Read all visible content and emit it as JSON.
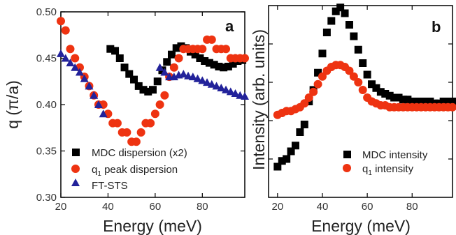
{
  "chart_data": [
    {
      "panel_label": "a",
      "type": "scatter",
      "xlabel": "Energy (meV)",
      "ylabel": "q (π/a)",
      "xlim": [
        20,
        98
      ],
      "ylim": [
        0.3,
        0.5
      ],
      "xticks": [
        "20",
        "40",
        "60",
        "80"
      ],
      "yticks": [
        "0.30",
        "0.35",
        "0.40",
        "0.45",
        "0.50"
      ],
      "legend_position": "bottom-right",
      "series": [
        {
          "name": "MDC dispersion (x2)",
          "marker": "square",
          "color": "#000000",
          "points": [
            [
              41,
              0.46
            ],
            [
              43,
              0.458
            ],
            [
              45,
              0.45
            ],
            [
              47,
              0.44
            ],
            [
              49,
              0.433
            ],
            [
              51,
              0.427
            ],
            [
              53,
              0.42
            ],
            [
              55,
              0.416
            ],
            [
              57,
              0.414
            ],
            [
              59,
              0.416
            ],
            [
              61,
              0.425
            ],
            [
              63,
              0.437
            ],
            [
              65,
              0.446
            ],
            [
              67,
              0.454
            ],
            [
              69,
              0.461
            ],
            [
              71,
              0.463
            ],
            [
              73,
              0.461
            ],
            [
              75,
              0.457
            ],
            [
              77,
              0.454
            ],
            [
              79,
              0.45
            ],
            [
              81,
              0.447
            ],
            [
              83,
              0.445
            ],
            [
              85,
              0.443
            ],
            [
              87,
              0.441
            ],
            [
              89,
              0.44
            ],
            [
              91,
              0.441
            ],
            [
              93,
              0.444
            ],
            [
              95,
              0.447
            ],
            [
              97,
              0.448
            ]
          ]
        },
        {
          "name": "q1 peak dispersion",
          "name_main": "q",
          "name_sub": "1",
          "name_rest": " peak dispersion",
          "marker": "circle",
          "color": "#ee3311",
          "points": [
            [
              20,
              0.49
            ],
            [
              22,
              0.48
            ],
            [
              24,
              0.46
            ],
            [
              26,
              0.45
            ],
            [
              28,
              0.44
            ],
            [
              30,
              0.43
            ],
            [
              32,
              0.42
            ],
            [
              34,
              0.41
            ],
            [
              36,
              0.4
            ],
            [
              38,
              0.4
            ],
            [
              40,
              0.39
            ],
            [
              42,
              0.38
            ],
            [
              44,
              0.38
            ],
            [
              46,
              0.37
            ],
            [
              48,
              0.37
            ],
            [
              50,
              0.36
            ],
            [
              52,
              0.36
            ],
            [
              54,
              0.37
            ],
            [
              56,
              0.38
            ],
            [
              58,
              0.38
            ],
            [
              60,
              0.39
            ],
            [
              62,
              0.4
            ],
            [
              64,
              0.41
            ],
            [
              66,
              0.43
            ],
            [
              68,
              0.44
            ],
            [
              70,
              0.45
            ],
            [
              72,
              0.46
            ],
            [
              74,
              0.46
            ],
            [
              76,
              0.46
            ],
            [
              78,
              0.46
            ],
            [
              80,
              0.46
            ],
            [
              82,
              0.47
            ],
            [
              84,
              0.47
            ],
            [
              86,
              0.46
            ],
            [
              88,
              0.46
            ],
            [
              90,
              0.46
            ],
            [
              92,
              0.45
            ],
            [
              94,
              0.45
            ],
            [
              96,
              0.45
            ],
            [
              98,
              0.45
            ]
          ]
        },
        {
          "name": "FT-STS",
          "marker": "triangle",
          "color": "#22229a",
          "points": [
            [
              20,
              0.455
            ],
            [
              22,
              0.45
            ],
            [
              24,
              0.445
            ],
            [
              26,
              0.44
            ],
            [
              28,
              0.435
            ],
            [
              30,
              0.428
            ],
            [
              32,
              0.42
            ],
            [
              34,
              0.41
            ],
            [
              36,
              0.4
            ],
            [
              38,
              0.39
            ],
            [
              62,
              0.44
            ],
            [
              64,
              0.435
            ],
            [
              66,
              0.43
            ],
            [
              68,
              0.43
            ],
            [
              70,
              0.432
            ],
            [
              72,
              0.433
            ],
            [
              74,
              0.431
            ],
            [
              76,
              0.43
            ],
            [
              78,
              0.428
            ],
            [
              80,
              0.426
            ],
            [
              82,
              0.424
            ],
            [
              84,
              0.422
            ],
            [
              86,
              0.42
            ],
            [
              88,
              0.418
            ],
            [
              90,
              0.416
            ],
            [
              92,
              0.414
            ],
            [
              94,
              0.412
            ],
            [
              96,
              0.41
            ],
            [
              98,
              0.409
            ]
          ]
        }
      ]
    },
    {
      "panel_label": "b",
      "type": "scatter",
      "xlabel": "Energy (meV)",
      "ylabel": "Intensity (arb. units)",
      "xlim": [
        16,
        98
      ],
      "ylim": [
        0,
        1
      ],
      "xticks": [
        "20",
        "40",
        "60",
        "80"
      ],
      "legend_position": "bottom-right",
      "series": [
        {
          "name": "MDC intensity",
          "marker": "square",
          "color": "#000000",
          "points": [
            [
              20,
              0.16
            ],
            [
              22,
              0.19
            ],
            [
              24,
              0.2
            ],
            [
              26,
              0.24
            ],
            [
              28,
              0.27
            ],
            [
              30,
              0.34
            ],
            [
              32,
              0.38
            ],
            [
              34,
              0.5
            ],
            [
              36,
              0.56
            ],
            [
              38,
              0.65
            ],
            [
              40,
              0.75
            ],
            [
              42,
              0.86
            ],
            [
              44,
              0.92
            ],
            [
              46,
              0.97
            ],
            [
              48,
              0.99
            ],
            [
              50,
              0.96
            ],
            [
              52,
              0.9
            ],
            [
              54,
              0.84
            ],
            [
              56,
              0.77
            ],
            [
              58,
              0.7
            ],
            [
              60,
              0.64
            ],
            [
              62,
              0.59
            ],
            [
              64,
              0.57
            ],
            [
              66,
              0.55
            ],
            [
              68,
              0.54
            ],
            [
              70,
              0.53
            ],
            [
              72,
              0.52
            ],
            [
              74,
              0.52
            ],
            [
              76,
              0.51
            ],
            [
              78,
              0.51
            ],
            [
              80,
              0.5
            ],
            [
              82,
              0.5
            ],
            [
              84,
              0.5
            ],
            [
              86,
              0.5
            ],
            [
              88,
              0.5
            ],
            [
              90,
              0.49
            ],
            [
              92,
              0.49
            ],
            [
              94,
              0.5
            ],
            [
              96,
              0.5
            ],
            [
              98,
              0.5
            ]
          ]
        },
        {
          "name": "q1 intensity",
          "name_main": "q",
          "name_sub": "1",
          "name_rest": " intensity",
          "marker": "circle",
          "color": "#ee3311",
          "points": [
            [
              20,
              0.43
            ],
            [
              22,
              0.44
            ],
            [
              24,
              0.45
            ],
            [
              26,
              0.45
            ],
            [
              28,
              0.46
            ],
            [
              30,
              0.47
            ],
            [
              32,
              0.49
            ],
            [
              34,
              0.52
            ],
            [
              36,
              0.55
            ],
            [
              38,
              0.59
            ],
            [
              40,
              0.63
            ],
            [
              42,
              0.66
            ],
            [
              44,
              0.68
            ],
            [
              46,
              0.69
            ],
            [
              48,
              0.69
            ],
            [
              50,
              0.68
            ],
            [
              52,
              0.66
            ],
            [
              54,
              0.63
            ],
            [
              56,
              0.6
            ],
            [
              58,
              0.56
            ],
            [
              60,
              0.52
            ],
            [
              62,
              0.5
            ],
            [
              64,
              0.49
            ],
            [
              66,
              0.48
            ],
            [
              68,
              0.48
            ],
            [
              70,
              0.47
            ],
            [
              72,
              0.47
            ],
            [
              74,
              0.47
            ],
            [
              76,
              0.47
            ],
            [
              78,
              0.47
            ],
            [
              80,
              0.47
            ],
            [
              82,
              0.47
            ],
            [
              84,
              0.47
            ],
            [
              86,
              0.47
            ],
            [
              88,
              0.47
            ],
            [
              90,
              0.47
            ],
            [
              92,
              0.47
            ],
            [
              94,
              0.47
            ],
            [
              96,
              0.47
            ],
            [
              98,
              0.47
            ]
          ]
        }
      ]
    }
  ]
}
